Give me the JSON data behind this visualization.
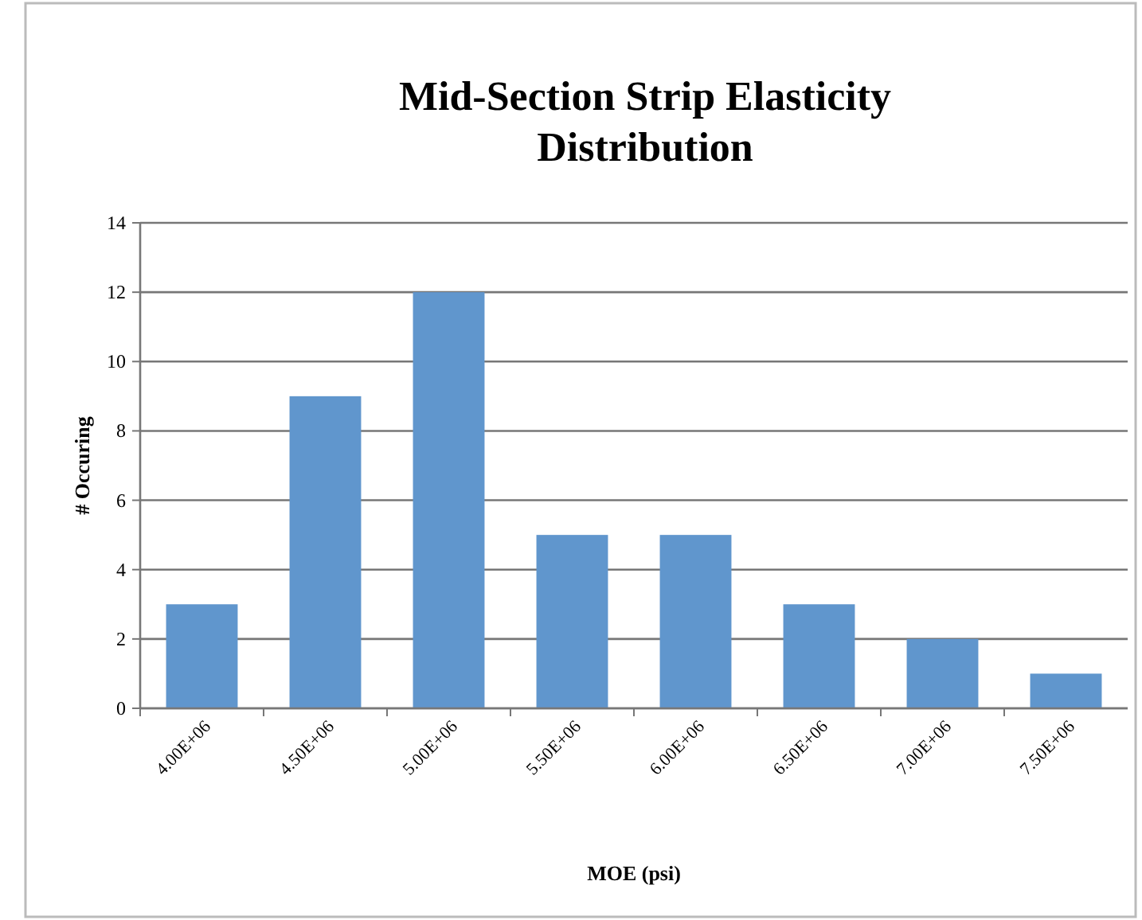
{
  "chart_data": {
    "type": "bar",
    "title": "Mid-Section Strip Elasticity Distribution",
    "xlabel": "MOE (psi)",
    "ylabel": "# Occuring",
    "categories": [
      "4.00E+06",
      "4.50E+06",
      "5.00E+06",
      "5.50E+06",
      "6.00E+06",
      "6.50E+06",
      "7.00E+06",
      "7.50E+06"
    ],
    "values": [
      3,
      9,
      12,
      5,
      5,
      3,
      2,
      1
    ],
    "color": "#6096cd",
    "ylim": [
      0,
      14
    ],
    "yticks": [
      0,
      2,
      4,
      6,
      8,
      10,
      12,
      14
    ],
    "grid": "y"
  }
}
